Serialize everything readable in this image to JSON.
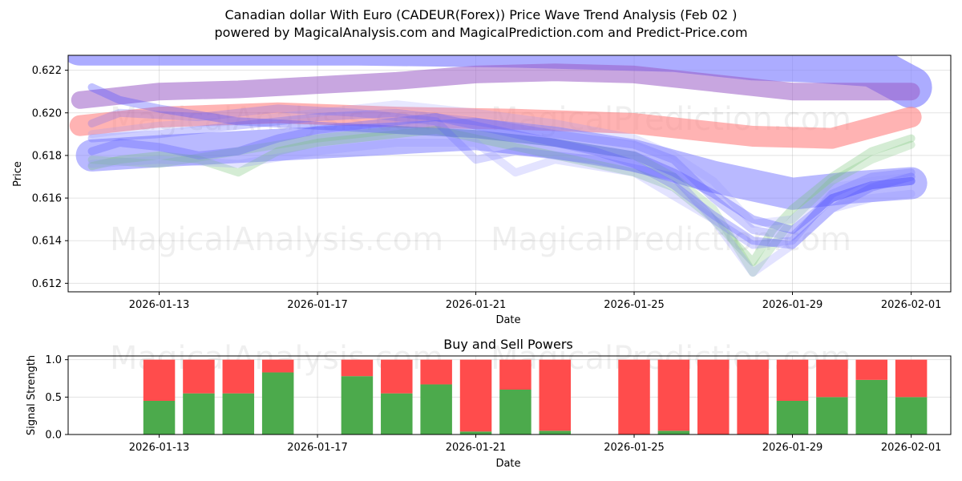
{
  "title": {
    "line1": "Canadian dollar With Euro (CADEUR(Forex)) Price Wave Trend Analysis (Feb 02 )",
    "line2": "powered by MagicalAnalysis.com and MagicalPrediction.com and Predict-Price.com"
  },
  "watermarks": {
    "left": "MagicalAnalysis.com",
    "right": "MagicalPrediction.com"
  },
  "chart_data": [
    {
      "type": "line",
      "title": "",
      "xlabel": "Date",
      "ylabel": "Price",
      "x_start": "2026-01-10",
      "xlim": [
        0.7,
        23.0
      ],
      "ylim": [
        0.6116,
        0.6227
      ],
      "x_ticks": [
        {
          "value": 3,
          "label": "2026-01-13"
        },
        {
          "value": 7,
          "label": "2026-01-17"
        },
        {
          "value": 11,
          "label": "2026-01-21"
        },
        {
          "value": 15,
          "label": "2026-01-25"
        },
        {
          "value": 19,
          "label": "2026-01-29"
        },
        {
          "value": 22,
          "label": "2026-02-01"
        }
      ],
      "y_ticks": [
        0.612,
        0.614,
        0.616,
        0.618,
        0.62,
        0.622
      ],
      "grid": true,
      "series": [
        {
          "name": "upper-band-blue",
          "color": "#8080ff",
          "opacity": 0.65,
          "width": 52,
          "x": [
            1.0,
            4,
            8,
            12,
            16,
            18,
            19.5,
            21,
            22
          ],
          "values": [
            0.6232,
            0.6232,
            0.6232,
            0.6231,
            0.6229,
            0.6225,
            0.6224,
            0.6222,
            0.6212
          ]
        },
        {
          "name": "upper-band-red",
          "color": "#ff8080",
          "opacity": 0.6,
          "width": 26,
          "x": [
            1.0,
            3,
            6,
            9,
            12,
            15,
            18,
            20,
            22
          ],
          "values": [
            0.6194,
            0.6198,
            0.62,
            0.6198,
            0.6197,
            0.6195,
            0.6189,
            0.6188,
            0.6198
          ]
        },
        {
          "name": "upper-band-purple",
          "color": "#9a5cc6",
          "opacity": 0.55,
          "width": 22,
          "x": [
            1.0,
            3,
            5,
            7,
            9,
            11,
            13,
            15,
            17,
            19,
            22
          ],
          "values": [
            0.6206,
            0.621,
            0.6211,
            0.6213,
            0.6215,
            0.6218,
            0.6219,
            0.6218,
            0.6214,
            0.621,
            0.621
          ]
        },
        {
          "name": "lower-band-blue",
          "color": "#8080ff",
          "opacity": 0.55,
          "width": 40,
          "x": [
            1.3,
            3,
            5,
            7,
            9,
            11,
            13,
            15,
            17,
            19,
            20.5,
            22
          ],
          "values": [
            0.618,
            0.6182,
            0.6184,
            0.6186,
            0.6188,
            0.619,
            0.6186,
            0.618,
            0.617,
            0.6162,
            0.6165,
            0.6167
          ]
        },
        {
          "name": "wave-green-1",
          "color": "#6fbf6f",
          "opacity": 0.3,
          "width": 10,
          "x": [
            1.3,
            2,
            3,
            4,
            5,
            6,
            7,
            8,
            9,
            10,
            11,
            12,
            13,
            14,
            15,
            16,
            17,
            18,
            18.5,
            19,
            20,
            21,
            22
          ],
          "values": [
            0.6175,
            0.6178,
            0.618,
            0.6178,
            0.6172,
            0.6182,
            0.6186,
            0.6188,
            0.619,
            0.6192,
            0.6188,
            0.6184,
            0.618,
            0.6176,
            0.6172,
            0.6165,
            0.615,
            0.613,
            0.6145,
            0.6155,
            0.617,
            0.6182,
            0.6188
          ]
        },
        {
          "name": "wave-green-2",
          "color": "#6fbf6f",
          "opacity": 0.25,
          "width": 10,
          "x": [
            1.3,
            3,
            5,
            7,
            9,
            11,
            13,
            15,
            16,
            17,
            18,
            19,
            20,
            21,
            22
          ],
          "values": [
            0.6178,
            0.6176,
            0.6182,
            0.6188,
            0.6192,
            0.619,
            0.6186,
            0.618,
            0.617,
            0.6155,
            0.6125,
            0.615,
            0.6168,
            0.6178,
            0.6185
          ]
        },
        {
          "name": "wave-blue-1",
          "color": "#6060ff",
          "opacity": 0.35,
          "width": 10,
          "x": [
            1.3,
            2,
            3,
            4,
            5,
            6,
            7,
            8,
            9,
            10,
            11,
            12,
            13,
            14,
            15,
            16,
            17,
            18,
            19,
            20,
            21,
            22
          ],
          "values": [
            0.6182,
            0.6186,
            0.6184,
            0.618,
            0.6182,
            0.6188,
            0.6192,
            0.6194,
            0.6196,
            0.6198,
            0.6194,
            0.619,
            0.6186,
            0.6182,
            0.6176,
            0.6166,
            0.6152,
            0.614,
            0.6138,
            0.6155,
            0.6165,
            0.617
          ]
        },
        {
          "name": "wave-blue-2",
          "color": "#6060ff",
          "opacity": 0.3,
          "width": 10,
          "x": [
            1.3,
            3,
            5,
            7,
            9,
            11,
            13,
            15,
            16,
            17,
            18,
            19,
            20,
            21,
            22
          ],
          "values": [
            0.6188,
            0.619,
            0.6194,
            0.6198,
            0.62,
            0.6196,
            0.619,
            0.6185,
            0.6178,
            0.616,
            0.6145,
            0.6142,
            0.616,
            0.6166,
            0.6168
          ]
        },
        {
          "name": "wave-blue-3",
          "color": "#6060ff",
          "opacity": 0.25,
          "width": 10,
          "x": [
            1.3,
            2,
            4,
            6,
            8,
            10,
            11,
            12,
            14,
            16,
            17,
            18,
            19,
            20,
            21,
            22
          ],
          "values": [
            0.6195,
            0.62,
            0.6198,
            0.6202,
            0.62,
            0.6196,
            0.6178,
            0.6182,
            0.6178,
            0.617,
            0.615,
            0.6138,
            0.614,
            0.6162,
            0.617,
            0.6172
          ]
        },
        {
          "name": "wave-blue-4",
          "color": "#9090ff",
          "opacity": 0.25,
          "width": 10,
          "x": [
            1.3,
            3,
            5,
            7,
            9,
            11,
            12,
            13,
            15,
            17,
            18,
            19,
            20,
            21,
            22
          ],
          "values": [
            0.6176,
            0.6178,
            0.6176,
            0.6182,
            0.6186,
            0.6186,
            0.6172,
            0.6178,
            0.6172,
            0.615,
            0.6125,
            0.6138,
            0.6155,
            0.616,
            0.6162
          ]
        },
        {
          "name": "wave-blue-5",
          "color": "#9090ff",
          "opacity": 0.22,
          "width": 10,
          "x": [
            1.3,
            3,
            5,
            7,
            9,
            11,
            13,
            15,
            16,
            17,
            18,
            19,
            20,
            21,
            22
          ],
          "values": [
            0.619,
            0.6194,
            0.6196,
            0.62,
            0.6204,
            0.62,
            0.6195,
            0.6188,
            0.618,
            0.6168,
            0.6148,
            0.615,
            0.6165,
            0.6168,
            0.617
          ]
        },
        {
          "name": "wave-blue-6",
          "color": "#5050ff",
          "opacity": 0.35,
          "width": 10,
          "x": [
            1.3,
            2,
            3,
            5,
            7,
            9,
            11,
            13,
            15,
            16,
            17,
            18,
            19,
            20,
            21,
            22
          ],
          "values": [
            0.6212,
            0.6206,
            0.6202,
            0.6196,
            0.6194,
            0.6192,
            0.619,
            0.6186,
            0.618,
            0.6172,
            0.6162,
            0.615,
            0.6145,
            0.616,
            0.6166,
            0.6168
          ]
        }
      ]
    },
    {
      "type": "bar",
      "title": "Buy and Sell Powers",
      "xlabel": "Date",
      "ylabel": "Signal Strength",
      "xlim": [
        0.7,
        23.0
      ],
      "ylim": [
        0,
        1.05
      ],
      "x_ticks": [
        {
          "value": 3,
          "label": "2026-01-13"
        },
        {
          "value": 7,
          "label": "2026-01-17"
        },
        {
          "value": 11,
          "label": "2026-01-21"
        },
        {
          "value": 15,
          "label": "2026-01-25"
        },
        {
          "value": 19,
          "label": "2026-01-29"
        },
        {
          "value": 22,
          "label": "2026-02-01"
        }
      ],
      "y_ticks": [
        0.0,
        0.5,
        1.0
      ],
      "grid": true,
      "buy_color": "#4caa4c",
      "sell_color": "#ff4c4c",
      "x": [
        3,
        4,
        5,
        6,
        8,
        9,
        10,
        11,
        12,
        13,
        15,
        16,
        17,
        18,
        19,
        20,
        21,
        22
      ],
      "buy": [
        0.45,
        0.55,
        0.55,
        0.83,
        0.78,
        0.55,
        0.67,
        0.04,
        0.6,
        0.05,
        0.0,
        0.05,
        0.0,
        0.0,
        0.45,
        0.5,
        0.73,
        0.5
      ],
      "sell": [
        0.55,
        0.45,
        0.45,
        0.17,
        0.22,
        0.45,
        0.33,
        0.96,
        0.4,
        0.95,
        1.0,
        0.95,
        1.0,
        1.0,
        0.55,
        0.5,
        0.27,
        0.5
      ]
    }
  ]
}
